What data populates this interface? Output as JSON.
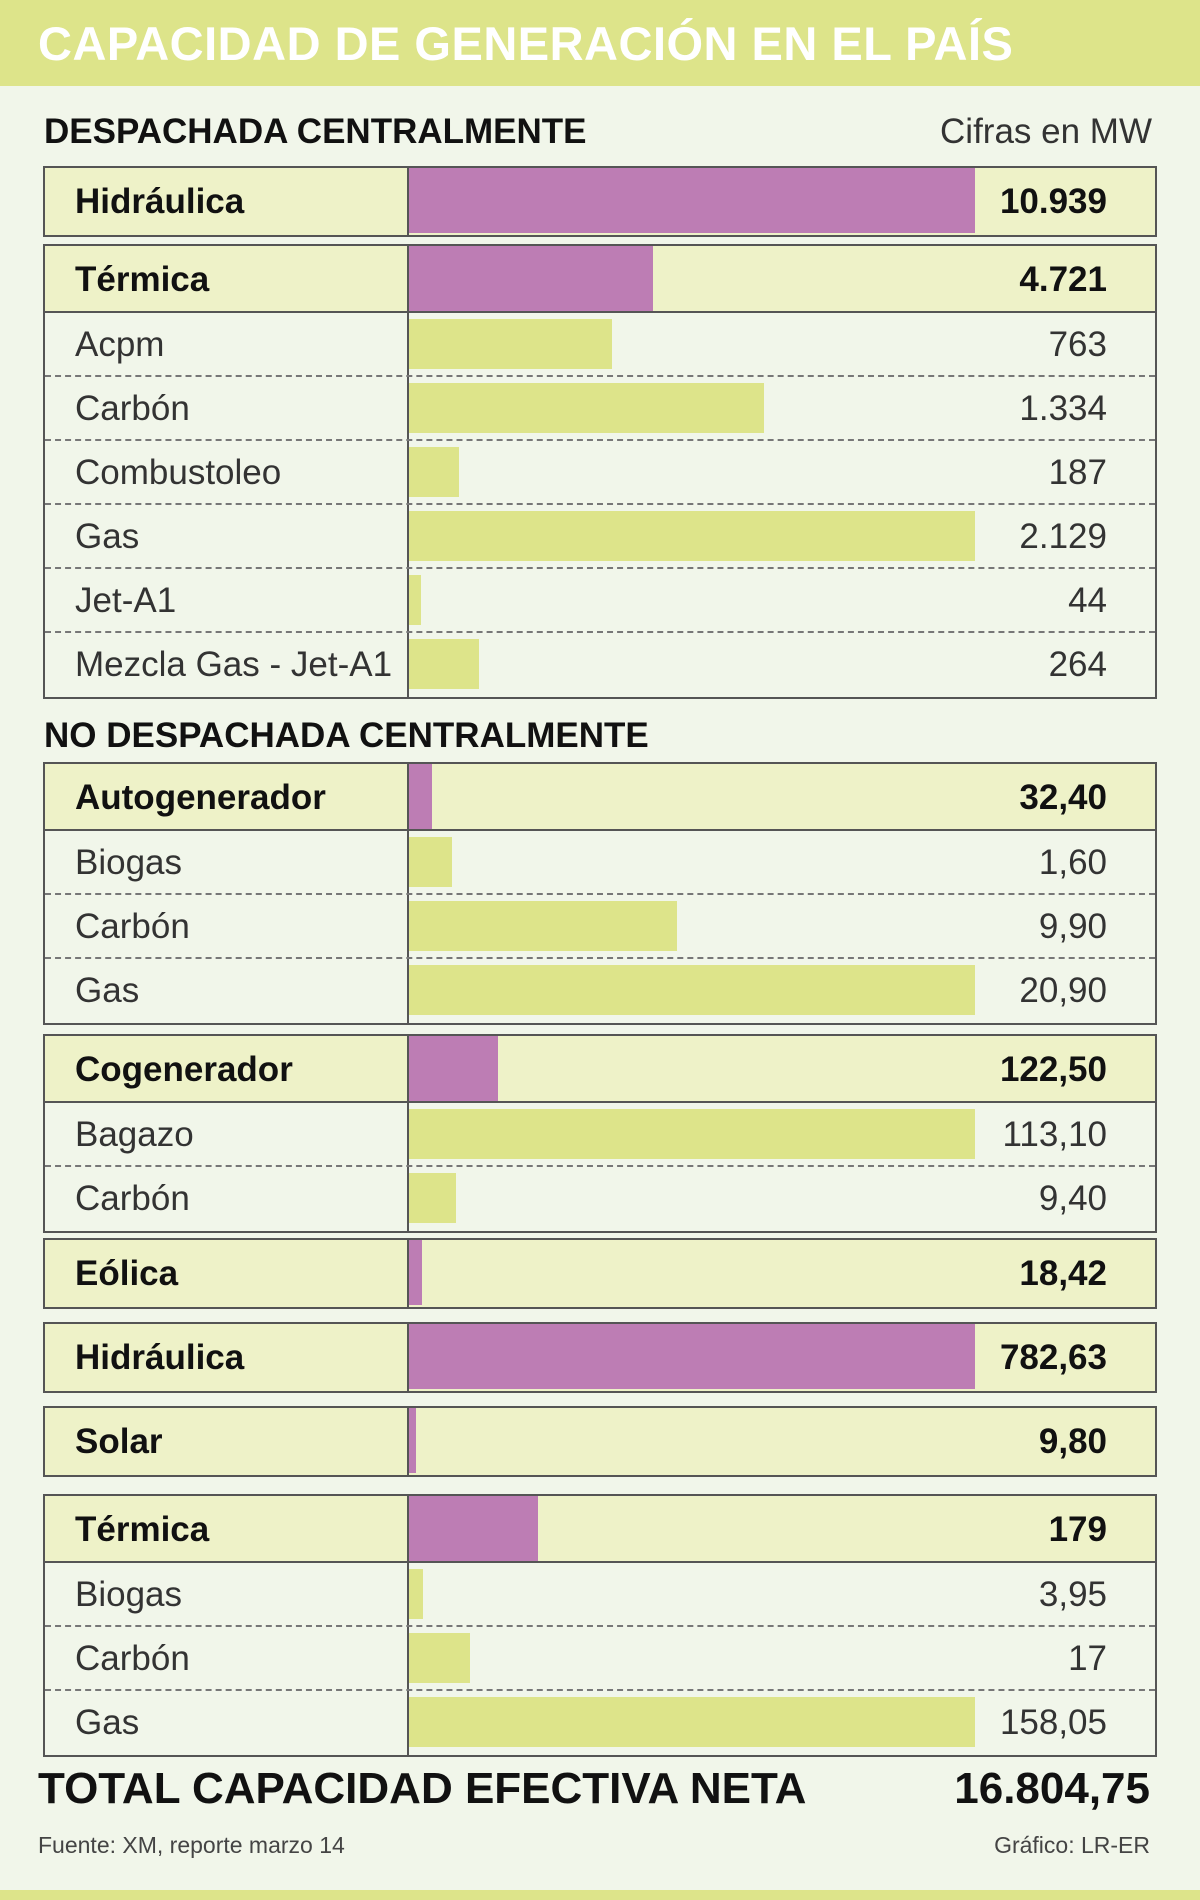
{
  "header": {
    "title": "CAPACIDAD DE GENERACIÓN EN EL PAÍS"
  },
  "units": "Cifras en MW",
  "chart_data": {
    "type": "bar",
    "sections": [
      {
        "title": "DESPACHADA CENTRALMENTE",
        "groups": [
          {
            "name": "Hidráulica",
            "value": 10939,
            "label": "10.939",
            "items": []
          },
          {
            "name": "Térmica",
            "value": 4721,
            "label": "4.721",
            "items": [
              {
                "name": "Acpm",
                "value": 763,
                "label": "763"
              },
              {
                "name": "Carbón",
                "value": 1334,
                "label": "1.334"
              },
              {
                "name": "Combustoleo",
                "value": 187,
                "label": "187"
              },
              {
                "name": "Gas",
                "value": 2129,
                "label": "2.129"
              },
              {
                "name": "Jet-A1",
                "value": 44,
                "label": "44"
              },
              {
                "name": "Mezcla Gas - Jet-A1",
                "value": 264,
                "label": "264"
              }
            ]
          }
        ]
      },
      {
        "title": "NO DESPACHADA CENTRALMENTE",
        "groups": [
          {
            "name": "Autogenerador",
            "value": 32.4,
            "label": "32,40",
            "items": [
              {
                "name": "Biogas",
                "value": 1.6,
                "label": "1,60"
              },
              {
                "name": "Carbón",
                "value": 9.9,
                "label": "9,90"
              },
              {
                "name": "Gas",
                "value": 20.9,
                "label": "20,90"
              }
            ]
          },
          {
            "name": "Cogenerador",
            "value": 122.5,
            "label": "122,50",
            "items": [
              {
                "name": "Bagazo",
                "value": 113.1,
                "label": "113,10"
              },
              {
                "name": "Carbón",
                "value": 9.4,
                "label": "9,40"
              }
            ]
          },
          {
            "name": "Eólica",
            "value": 18.42,
            "label": "18,42",
            "items": []
          },
          {
            "name": "Hidráulica",
            "value": 782.63,
            "label": "782,63",
            "items": []
          },
          {
            "name": "Solar",
            "value": 9.8,
            "label": "9,80",
            "items": []
          },
          {
            "name": "Térmica",
            "value": 179,
            "label": "179",
            "items": [
              {
                "name": "Biogas",
                "value": 3.95,
                "label": "3,95"
              },
              {
                "name": "Carbón",
                "value": 17,
                "label": "17"
              },
              {
                "name": "Gas",
                "value": 158.05,
                "label": "158,05"
              }
            ]
          }
        ]
      }
    ],
    "total": {
      "label": "TOTAL CAPACIDAD EFECTIVA NETA",
      "value": 16804.75,
      "value_label": "16.804,75"
    }
  },
  "footer": {
    "source": "Fuente: XM, reporte marzo 14",
    "credit": "Gráfico: LR-ER"
  },
  "colors": {
    "main_bar": "#bd7db4",
    "sub_bar": "#dde48a",
    "header": "#dde48a",
    "background": "#f1f6ea"
  }
}
